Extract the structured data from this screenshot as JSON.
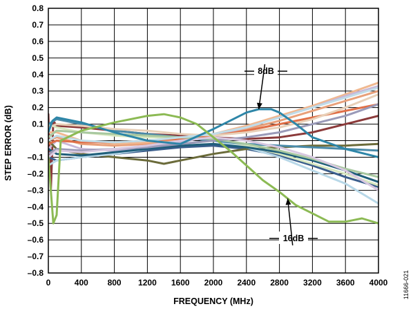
{
  "chart_data": {
    "type": "line",
    "title": "",
    "xlabel": "FREQUENCY (MHz)",
    "ylabel": "STEP ERROR (dB)",
    "xlim": [
      0,
      4000
    ],
    "ylim": [
      -0.8,
      0.8
    ],
    "x_ticks": [
      "0",
      "400",
      "800",
      "1200",
      "1600",
      "2000",
      "2400",
      "2800",
      "3200",
      "3600",
      "4000"
    ],
    "y_ticks": [
      "0.8",
      "0.7",
      "0.6",
      "0.5",
      "0.4",
      "0.3",
      "0.2",
      "0.1",
      "0",
      "–0.1",
      "–0.2",
      "–0.3",
      "–0.4",
      "–0.5",
      "–0.6",
      "–0.7",
      "–0.8"
    ],
    "grid": true,
    "annotations": [
      {
        "text": "8dB",
        "arrow_to": [
          2550,
          0.19
        ]
      },
      {
        "text": "16dB",
        "arrow_to": [
          2900,
          -0.35
        ]
      }
    ],
    "figure_id": "11666-021",
    "series": [
      {
        "label": "8dB",
        "color": "#2e86a8",
        "x": [
          0,
          50,
          100,
          400,
          800,
          1200,
          1600,
          2000,
          2200,
          2400,
          2550,
          2700,
          2800,
          3000,
          3200,
          3600,
          4000
        ],
        "y": [
          0.05,
          0.12,
          0.14,
          0.11,
          0.05,
          0.0,
          -0.02,
          0.07,
          0.12,
          0.17,
          0.19,
          0.19,
          0.17,
          0.1,
          0.02,
          -0.05,
          -0.1
        ]
      },
      {
        "label": "16dB",
        "color": "#8cba54",
        "x": [
          0,
          60,
          100,
          150,
          400,
          800,
          1200,
          1400,
          1600,
          1800,
          2000,
          2200,
          2400,
          2600,
          2800,
          2900,
          3000,
          3200,
          3400,
          3600,
          3800,
          4000
        ],
        "y": [
          -0.1,
          -0.5,
          -0.45,
          0.0,
          0.06,
          0.11,
          0.15,
          0.16,
          0.14,
          0.1,
          0.02,
          -0.06,
          -0.15,
          -0.24,
          -0.31,
          -0.35,
          -0.39,
          -0.44,
          -0.49,
          -0.49,
          -0.47,
          -0.5
        ]
      },
      {
        "color": "#8b3a3a",
        "x": [
          0,
          30,
          60,
          100,
          400,
          800,
          1200,
          1600,
          2000,
          2400,
          2800,
          3200,
          3600,
          4000
        ],
        "y": [
          0.16,
          -0.3,
          0.12,
          0.09,
          0.08,
          0.06,
          0.04,
          0.03,
          0.02,
          0.01,
          0.02,
          0.05,
          0.1,
          0.15
        ]
      },
      {
        "color": "#e8a07a",
        "x": [
          0,
          100,
          400,
          800,
          1200,
          1600,
          2000,
          2400,
          2800,
          3200,
          3600,
          4000
        ],
        "y": [
          0.0,
          0.02,
          -0.02,
          -0.03,
          -0.02,
          0.0,
          0.03,
          0.07,
          0.12,
          0.18,
          0.24,
          0.3
        ]
      },
      {
        "color": "#f0b890",
        "x": [
          0,
          100,
          400,
          800,
          1200,
          1600,
          2000,
          2400,
          2800,
          3200,
          3600,
          4000
        ],
        "y": [
          0.05,
          0.05,
          0.0,
          -0.02,
          -0.01,
          0.01,
          0.04,
          0.09,
          0.15,
          0.21,
          0.28,
          0.35
        ]
      },
      {
        "color": "#c8b8d8",
        "x": [
          0,
          100,
          400,
          800,
          1200,
          1600,
          2000,
          2400,
          2800,
          3200,
          3600,
          4000
        ],
        "y": [
          -0.05,
          0.0,
          -0.05,
          -0.06,
          -0.04,
          -0.01,
          0.03,
          0.08,
          0.14,
          0.2,
          0.27,
          0.33
        ]
      },
      {
        "color": "#3a5e8c",
        "x": [
          0,
          100,
          400,
          800,
          1200,
          1600,
          2000,
          2400,
          2800,
          3200,
          3600,
          4000
        ],
        "y": [
          -0.1,
          -0.12,
          -0.1,
          -0.08,
          -0.06,
          -0.04,
          -0.03,
          -0.05,
          -0.09,
          -0.15,
          -0.22,
          -0.28
        ]
      },
      {
        "color": "#6b6b3a",
        "x": [
          0,
          100,
          400,
          800,
          1200,
          1400,
          1600,
          2000,
          2400,
          2800,
          3200,
          3600,
          4000
        ],
        "y": [
          0.0,
          -0.05,
          -0.08,
          -0.1,
          -0.12,
          -0.14,
          -0.12,
          -0.08,
          -0.05,
          -0.04,
          -0.03,
          -0.03,
          -0.02
        ]
      },
      {
        "color": "#b8d8e8",
        "x": [
          0,
          100,
          400,
          800,
          1200,
          1600,
          2000,
          2400,
          2800,
          3200,
          3600,
          4000
        ],
        "y": [
          -0.15,
          -0.12,
          -0.1,
          -0.08,
          -0.05,
          -0.02,
          0.0,
          -0.04,
          -0.1,
          -0.18,
          -0.26,
          -0.38
        ]
      },
      {
        "color": "#d8e8c0",
        "x": [
          0,
          100,
          400,
          800,
          1200,
          1600,
          2000,
          2400,
          2800,
          3200,
          3600,
          4000
        ],
        "y": [
          0.1,
          0.08,
          0.05,
          0.03,
          0.02,
          0.02,
          0.01,
          -0.03,
          -0.08,
          -0.14,
          -0.2,
          -0.27
        ]
      },
      {
        "color": "#4a8aa8",
        "x": [
          0,
          100,
          400,
          800,
          1200,
          1600,
          2000,
          2400,
          2800,
          3200,
          3600,
          4000
        ],
        "y": [
          0.1,
          0.13,
          0.1,
          0.06,
          0.04,
          0.02,
          0.0,
          -0.02,
          -0.03,
          -0.04,
          -0.05,
          -0.06
        ]
      },
      {
        "color": "#e07048",
        "x": [
          0,
          100,
          400,
          800,
          1200,
          1600,
          2000,
          2400,
          2800,
          3200,
          3600,
          4000
        ],
        "y": [
          -0.02,
          0.0,
          -0.01,
          -0.01,
          0.0,
          0.01,
          0.03,
          0.06,
          0.1,
          0.14,
          0.18,
          0.22
        ]
      },
      {
        "color": "#1f5e7a",
        "x": [
          0,
          100,
          400,
          800,
          1200,
          1600,
          2000,
          2400,
          2800,
          3200,
          3600,
          4000
        ],
        "y": [
          -0.05,
          -0.08,
          -0.09,
          -0.07,
          -0.05,
          -0.03,
          -0.02,
          -0.04,
          -0.07,
          -0.12,
          -0.18,
          -0.25
        ]
      },
      {
        "color": "#a8c8a0",
        "x": [
          0,
          100,
          400,
          800,
          1200,
          1600,
          2000,
          2400,
          2800,
          3200,
          3600,
          4000
        ],
        "y": [
          0.02,
          0.06,
          0.05,
          0.04,
          0.03,
          0.02,
          0.01,
          -0.02,
          -0.06,
          -0.11,
          -0.17,
          -0.22
        ]
      },
      {
        "color": "#e8d0b8",
        "x": [
          0,
          100,
          400,
          800,
          1200,
          1600,
          2000,
          2400,
          2800,
          3200,
          3600,
          4000
        ],
        "y": [
          0.08,
          0.1,
          0.09,
          0.07,
          0.06,
          0.04,
          0.03,
          0.05,
          0.08,
          0.13,
          0.2,
          0.28
        ]
      },
      {
        "color": "#9a9ab8",
        "x": [
          0,
          100,
          400,
          800,
          1200,
          1600,
          2000,
          2400,
          2800,
          3200,
          3600,
          4000
        ],
        "y": [
          -0.08,
          -0.05,
          -0.06,
          -0.05,
          -0.04,
          -0.02,
          0.0,
          0.02,
          0.05,
          0.1,
          0.15,
          0.22
        ]
      },
      {
        "color": "#c0dce8",
        "x": [
          0,
          100,
          400,
          800,
          1200,
          1600,
          2000,
          2400,
          2800,
          3200,
          3600,
          4000
        ],
        "y": [
          0.0,
          0.03,
          0.0,
          -0.01,
          0.0,
          0.02,
          0.04,
          0.08,
          0.14,
          0.2,
          0.26,
          0.32
        ]
      },
      {
        "color": "#d8c8e0",
        "x": [
          0,
          100,
          400,
          800,
          1200,
          1600,
          2000,
          2400,
          2800,
          3200,
          3600,
          4000
        ],
        "y": [
          -0.1,
          -0.06,
          -0.07,
          -0.05,
          -0.03,
          0.0,
          0.02,
          0.0,
          -0.04,
          -0.1,
          -0.18,
          -0.3
        ]
      }
    ]
  }
}
